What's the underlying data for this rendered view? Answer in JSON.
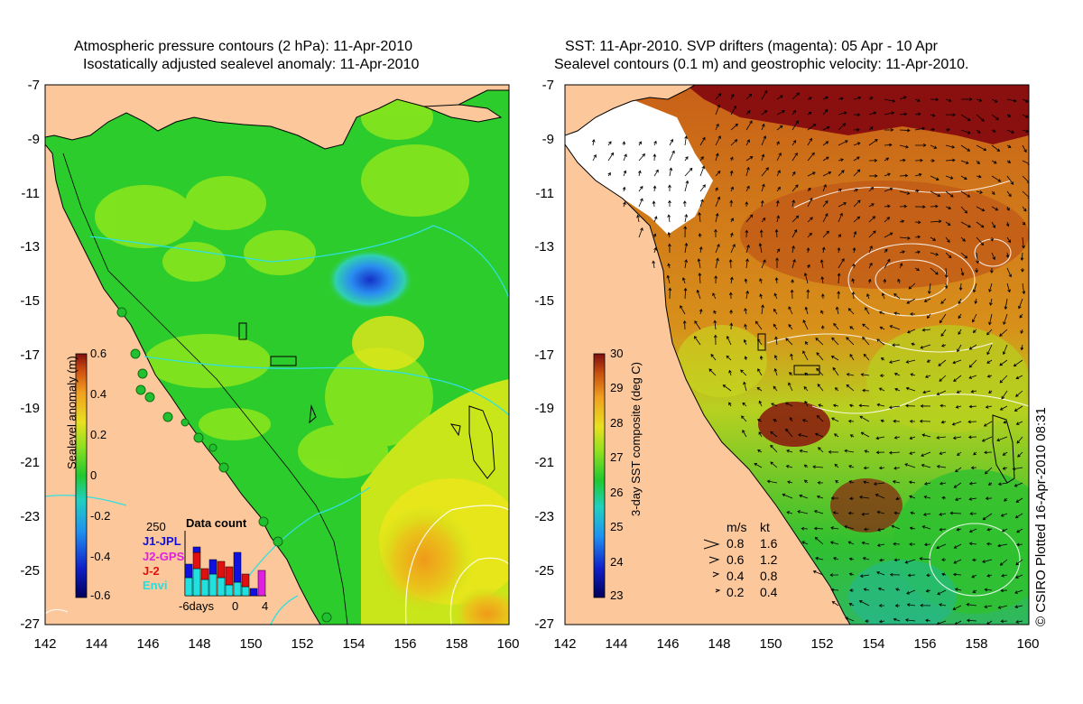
{
  "left_panel": {
    "title_line1": "Atmospheric pressure contours (2 hPa): 11-Apr-2010",
    "title_line2": "Isostatically adjusted sealevel anomaly: 11-Apr-2010",
    "lat_ticks": [
      "-7",
      "-9",
      "-11",
      "-13",
      "-15",
      "-17",
      "-19",
      "-21",
      "-23",
      "-25",
      "-27"
    ],
    "lon_ticks": [
      "142",
      "144",
      "146",
      "148",
      "150",
      "152",
      "154",
      "156",
      "158",
      "160"
    ],
    "colorbar": {
      "label": "Sealevel anomaly (m)",
      "ticks": [
        "0.6",
        "0.4",
        "0.2",
        "0",
        "-0.2",
        "-0.4",
        "-0.6"
      ],
      "range": [
        -0.6,
        0.6
      ]
    },
    "data_count": {
      "title": "Data count",
      "max_label": "250",
      "missions": [
        {
          "name": "J1-JPL",
          "color": "#1010e0"
        },
        {
          "name": "J2-GPS",
          "color": "#e020e0"
        },
        {
          "name": "J-2",
          "color": "#e01010"
        },
        {
          "name": "Envi",
          "color": "#20e0e0"
        }
      ],
      "axis_labels": [
        "-6days",
        "0",
        "4"
      ]
    }
  },
  "right_panel": {
    "title_line1": "SST: 11-Apr-2010. SVP drifters (magenta): 05 Apr - 10 Apr",
    "title_line2": "Sealevel contours (0.1 m) and geostrophic velocity: 11-Apr-2010.",
    "lat_ticks": [
      "-7",
      "-9",
      "-11",
      "-13",
      "-15",
      "-17",
      "-19",
      "-21",
      "-23",
      "-25",
      "-27"
    ],
    "lon_ticks": [
      "142",
      "144",
      "146",
      "148",
      "150",
      "152",
      "154",
      "156",
      "158",
      "160"
    ],
    "colorbar": {
      "label": "3-day SST composite (deg C)",
      "ticks": [
        "30",
        "29",
        "28",
        "27",
        "26",
        "25",
        "24",
        "23"
      ],
      "range": [
        23,
        30
      ]
    },
    "velocity_legend": {
      "unit_ms": "m/s",
      "unit_kt": "kt",
      "rows": [
        {
          "ms": "0.8",
          "kt": "1.6"
        },
        {
          "ms": "0.6",
          "kt": "1.2"
        },
        {
          "ms": "0.4",
          "kt": "0.8"
        },
        {
          "ms": "0.2",
          "kt": "0.4"
        }
      ]
    }
  },
  "credit": "© CSIRO Plotted 16-Apr-2010 08:31",
  "colors": {
    "land": "#fcc79a",
    "ocean_mid_green": "#2dcc2d",
    "ocean_light_green": "#8ee61c",
    "ocean_yellow": "#e6e61a",
    "ocean_orange": "#f0a81c",
    "ocean_blue": "#2b6fe0",
    "sst_warm": "#cc6a18",
    "sst_hot": "#8a1010",
    "contour_cyan": "#30e0e0"
  }
}
